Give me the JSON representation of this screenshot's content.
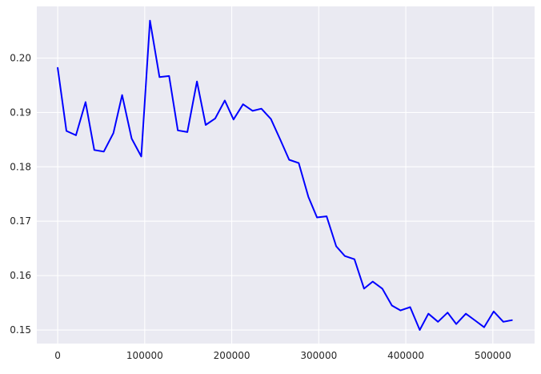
{
  "chart_data": {
    "type": "line",
    "title": "",
    "xlabel": "",
    "ylabel": "",
    "xlim": [
      -24000,
      548000
    ],
    "ylim": [
      0.1475,
      0.2095
    ],
    "grid": true,
    "legend": "none",
    "colors": {
      "line": "#0000ff",
      "plot_background": "#eaeaf2",
      "grid": "#ffffff",
      "tick_text": "#262626"
    },
    "x_ticks": [
      {
        "value": 0,
        "label": "0"
      },
      {
        "value": 100000,
        "label": "100000"
      },
      {
        "value": 200000,
        "label": "200000"
      },
      {
        "value": 300000,
        "label": "300000"
      },
      {
        "value": 400000,
        "label": "400000"
      },
      {
        "value": 500000,
        "label": "500000"
      }
    ],
    "y_ticks": [
      {
        "value": 0.15,
        "label": "0.15"
      },
      {
        "value": 0.16,
        "label": "0.16"
      },
      {
        "value": 0.17,
        "label": "0.17"
      },
      {
        "value": 0.18,
        "label": "0.18"
      },
      {
        "value": 0.19,
        "label": "0.19"
      },
      {
        "value": 0.2,
        "label": "0.20"
      }
    ],
    "series": [
      {
        "x": [
          0,
          10000,
          21000,
          32000,
          42000,
          53000,
          64000,
          74000,
          85000,
          96000,
          106000,
          117000,
          128000,
          138000,
          149000,
          160000,
          170000,
          181000,
          192000,
          202000,
          213000,
          224000,
          234000,
          245000,
          256000,
          266000,
          277000,
          288000,
          298000,
          309000,
          320000,
          330000,
          341000,
          352000,
          362000,
          373000,
          384000,
          394000,
          405000,
          416000,
          426000,
          437000,
          448000,
          458000,
          469000,
          480000,
          490000,
          501000,
          512000,
          522000
        ],
        "y": [
          0.1982,
          0.1866,
          0.1858,
          0.1919,
          0.1831,
          0.1828,
          0.1862,
          0.1932,
          0.1852,
          0.1819,
          0.2069,
          0.1965,
          0.1967,
          0.1867,
          0.1864,
          0.1957,
          0.1877,
          0.1889,
          0.1922,
          0.1887,
          0.1915,
          0.1903,
          0.1907,
          0.1888,
          0.1849,
          0.1813,
          0.1807,
          0.1745,
          0.1707,
          0.1709,
          0.1654,
          0.1636,
          0.163,
          0.1576,
          0.1589,
          0.1576,
          0.1545,
          0.1536,
          0.1542,
          0.15,
          0.153,
          0.1515,
          0.1532,
          0.1511,
          0.153,
          0.1517,
          0.1505,
          0.1534,
          0.1515,
          0.1518
        ]
      }
    ]
  }
}
